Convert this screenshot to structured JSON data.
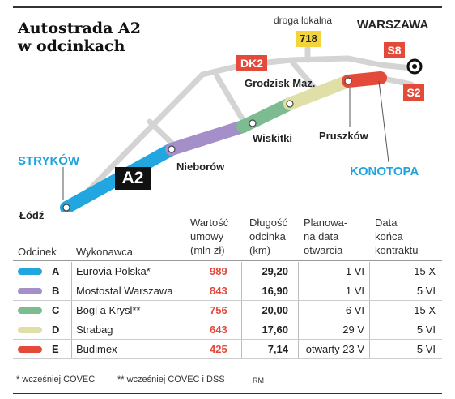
{
  "title_line1": "Autostrada A2",
  "title_line2": "w odcinkach",
  "map": {
    "cities": {
      "strykow": "STRYKÓW",
      "lodz": "Łódź",
      "nieborow": "Nieborów",
      "wiskitki": "Wiskitki",
      "grodzisk": "Grodzisk Maz.",
      "pruszkow": "Pruszków",
      "konotopa": "KONOTOPA",
      "warszawa": "WARSZAWA"
    },
    "local_road_label": "droga lokalna",
    "roads": {
      "a2": "A2",
      "dk2": "DK2",
      "r718": "718",
      "s8": "S8",
      "s2": "S2"
    },
    "colors": {
      "A": "#21a6e0",
      "B": "#a48fc9",
      "C": "#7dbb91",
      "D": "#e0dfa8",
      "E": "#e34a3a",
      "road_gray": "#d2d2d2",
      "accent_blue": "#1fa3dc",
      "accent_red": "#e34a3a"
    }
  },
  "table": {
    "headers": {
      "odcinek": "Odcinek",
      "wykonawca": "Wykonawca",
      "wartosc": [
        "Wartość",
        "umowy",
        "(mln zł)"
      ],
      "dlugosc": [
        "Długość",
        "odcinka",
        "(km)"
      ],
      "planowana": [
        "Planowa-",
        "na data",
        "otwarcia"
      ],
      "data_konca": [
        "Data",
        "końca",
        "kontraktu"
      ]
    },
    "rows": [
      {
        "code": "A",
        "contractor": "Eurovia Polska*",
        "value": "989",
        "length": "29,20",
        "opening": "1 VI",
        "end": "15 X",
        "color": "#21a6e0"
      },
      {
        "code": "B",
        "contractor": "Mostostal Warszawa",
        "value": "843",
        "length": "16,90",
        "opening": "1 VI",
        "end": "5 VI",
        "color": "#a48fc9"
      },
      {
        "code": "C",
        "contractor": "Bogl a Krysl**",
        "value": "756",
        "length": "20,00",
        "opening": "6 VI",
        "end": "15 X",
        "color": "#7dbb91"
      },
      {
        "code": "D",
        "contractor": "Strabag",
        "value": "643",
        "length": "17,60",
        "opening": "29 V",
        "end": "5 VI",
        "color": "#e0dfa8"
      },
      {
        "code": "E",
        "contractor": "Budimex",
        "value": "425",
        "length": "7,14",
        "opening": "otwarty 23 V",
        "end": "5 VI",
        "color": "#e34a3a"
      }
    ]
  },
  "footnotes": {
    "note1": "* wcześniej COVEC",
    "note2": "** wcześniej COVEC i DSS",
    "credit": "RM"
  }
}
